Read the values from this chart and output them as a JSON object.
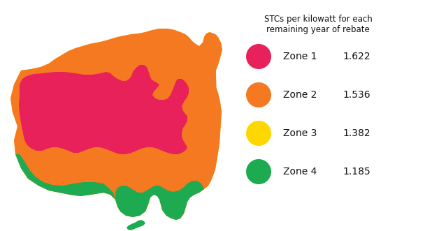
{
  "title": "STCs per kilowatt for each\nremaining year of rebate",
  "zones": [
    "Zone 1",
    "Zone 2",
    "Zone 3",
    "Zone 4"
  ],
  "values": [
    "1.622",
    "1.536",
    "1.382",
    "1.185"
  ],
  "colors": [
    "#E8215A",
    "#F47920",
    "#FFD700",
    "#1DAA50"
  ],
  "bg_color": "#FFFFFF",
  "figsize": [
    6.18,
    3.31
  ],
  "dpi": 100
}
